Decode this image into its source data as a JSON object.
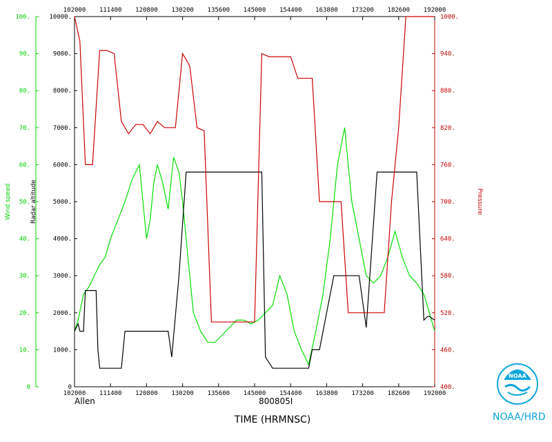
{
  "chart_data": {
    "type": "line",
    "xlabel": "TIME (HRMNSC)",
    "storm_name": "Allen",
    "flight_id": "800805I",
    "x_ticks": [
      "102000",
      "111400",
      "120800",
      "130200",
      "135600",
      "145000",
      "154400",
      "163800",
      "173200",
      "182600",
      "192000"
    ],
    "xlim": [
      0,
      10
    ],
    "axes": {
      "wind_speed": {
        "label": "Wind speed",
        "ylim": [
          0,
          100
        ],
        "ticks": [
          "0",
          "10.",
          "20.",
          "30.",
          "40.",
          "50.",
          "60.",
          "70.",
          "80.",
          "90.",
          "100."
        ],
        "color": "#00d000"
      },
      "radar_altitude": {
        "label": "Radar altitude",
        "ylim": [
          0,
          10000
        ],
        "ticks": [
          "0",
          "1000.",
          "2000.",
          "3000.",
          "4000.",
          "5000.",
          "6000.",
          "7000.",
          "8000.",
          "9000.",
          "10000."
        ],
        "color": "#000000"
      },
      "pressure": {
        "label": "Pressure",
        "ylim": [
          400,
          1000
        ],
        "ticks": [
          "400.",
          "460.",
          "520.",
          "580.",
          "640.",
          "700.",
          "760.",
          "820.",
          "880.",
          "940.",
          "1000."
        ],
        "color": "#c00000"
      }
    },
    "series": [
      {
        "name": "Wind speed",
        "axis": "wind_speed",
        "color": "#00e000",
        "x": [
          0,
          0.1,
          0.25,
          0.4,
          0.55,
          0.7,
          0.85,
          1.0,
          1.2,
          1.4,
          1.6,
          1.8,
          1.9,
          2.0,
          2.1,
          2.2,
          2.3,
          2.45,
          2.6,
          2.75,
          2.9,
          3.0,
          3.1,
          3.2,
          3.3,
          3.5,
          3.7,
          3.9,
          4.1,
          4.3,
          4.5,
          4.7,
          4.9,
          5.1,
          5.3,
          5.5,
          5.7,
          5.9,
          6.1,
          6.3,
          6.5,
          6.7,
          6.9,
          7.1,
          7.3,
          7.5,
          7.7,
          7.9,
          8.1,
          8.3,
          8.5,
          8.7,
          8.9,
          9.1,
          9.3,
          9.5,
          9.7,
          9.85,
          10.0
        ],
        "y": [
          15,
          18,
          25,
          27,
          30,
          33,
          35,
          40,
          45,
          50,
          56,
          60,
          50,
          40,
          45,
          55,
          60,
          55,
          48,
          62,
          58,
          50,
          40,
          30,
          20,
          15,
          12,
          12,
          14,
          16,
          18,
          18,
          17,
          18,
          20,
          22,
          30,
          25,
          15,
          10,
          6,
          15,
          25,
          40,
          60,
          70,
          50,
          40,
          30,
          28,
          30,
          35,
          42,
          35,
          30,
          28,
          25,
          20,
          15
        ]
      },
      {
        "name": "Radar altitude",
        "axis": "radar_altitude",
        "color": "#000000",
        "x": [
          0,
          0.1,
          0.15,
          0.25,
          0.3,
          0.5,
          0.6,
          0.65,
          0.7,
          1.0,
          1.1,
          1.3,
          1.4,
          1.5,
          1.8,
          1.9,
          2.0,
          2.2,
          2.4,
          2.6,
          2.7,
          2.9,
          3.1,
          3.3,
          3.5,
          3.8,
          4.0,
          4.2,
          4.4,
          4.5,
          4.6,
          4.8,
          5.0,
          5.1,
          5.2,
          5.3,
          5.5,
          5.8,
          6.0,
          6.2,
          6.5,
          6.6,
          6.8,
          7.2,
          7.4,
          7.5,
          7.7,
          7.9,
          8.1,
          8.4,
          8.7,
          9.0,
          9.2,
          9.5,
          9.7,
          9.8,
          9.85,
          10.0
        ],
        "y": [
          1500,
          1700,
          1500,
          1500,
          2600,
          2600,
          2600,
          1000,
          500,
          500,
          500,
          500,
          1500,
          1500,
          1500,
          1500,
          1500,
          1500,
          1500,
          1500,
          800,
          3000,
          5800,
          5800,
          5800,
          5800,
          5800,
          5800,
          5800,
          5800,
          5800,
          5800,
          5800,
          5800,
          5800,
          800,
          500,
          500,
          500,
          500,
          500,
          1000,
          1000,
          3000,
          3000,
          3000,
          3000,
          3000,
          1600,
          5800,
          5800,
          5800,
          5800,
          5800,
          1800,
          1900,
          1900,
          1800
        ]
      },
      {
        "name": "Pressure",
        "axis": "pressure",
        "color": "#cc0000",
        "x": [
          0,
          0.15,
          0.3,
          0.5,
          0.7,
          0.9,
          1.1,
          1.3,
          1.5,
          1.7,
          1.9,
          2.1,
          2.3,
          2.5,
          2.8,
          3.0,
          3.2,
          3.4,
          3.6,
          3.8,
          4.0,
          4.2,
          4.4,
          4.6,
          4.8,
          5.0,
          5.2,
          5.4,
          5.6,
          5.8,
          6.0,
          6.2,
          6.4,
          6.6,
          6.8,
          7.0,
          7.2,
          7.4,
          7.6,
          7.8,
          8.0,
          8.2,
          8.4,
          8.6,
          8.8,
          9.0,
          9.2,
          9.4,
          9.6,
          9.8,
          9.9,
          10.0
        ],
        "y": [
          1000,
          960,
          760,
          760,
          945,
          945,
          940,
          830,
          810,
          825,
          825,
          810,
          830,
          820,
          820,
          940,
          920,
          820,
          815,
          505,
          505,
          505,
          505,
          505,
          505,
          505,
          940,
          935,
          935,
          935,
          935,
          900,
          900,
          900,
          700,
          700,
          700,
          700,
          520,
          520,
          520,
          520,
          520,
          520,
          700,
          820,
          1000,
          1000,
          1000,
          1000,
          1000,
          1000
        ]
      }
    ],
    "grid": false,
    "legend": "none"
  },
  "logo": {
    "text": "NOAA/HRD",
    "mark": "NOAA"
  }
}
